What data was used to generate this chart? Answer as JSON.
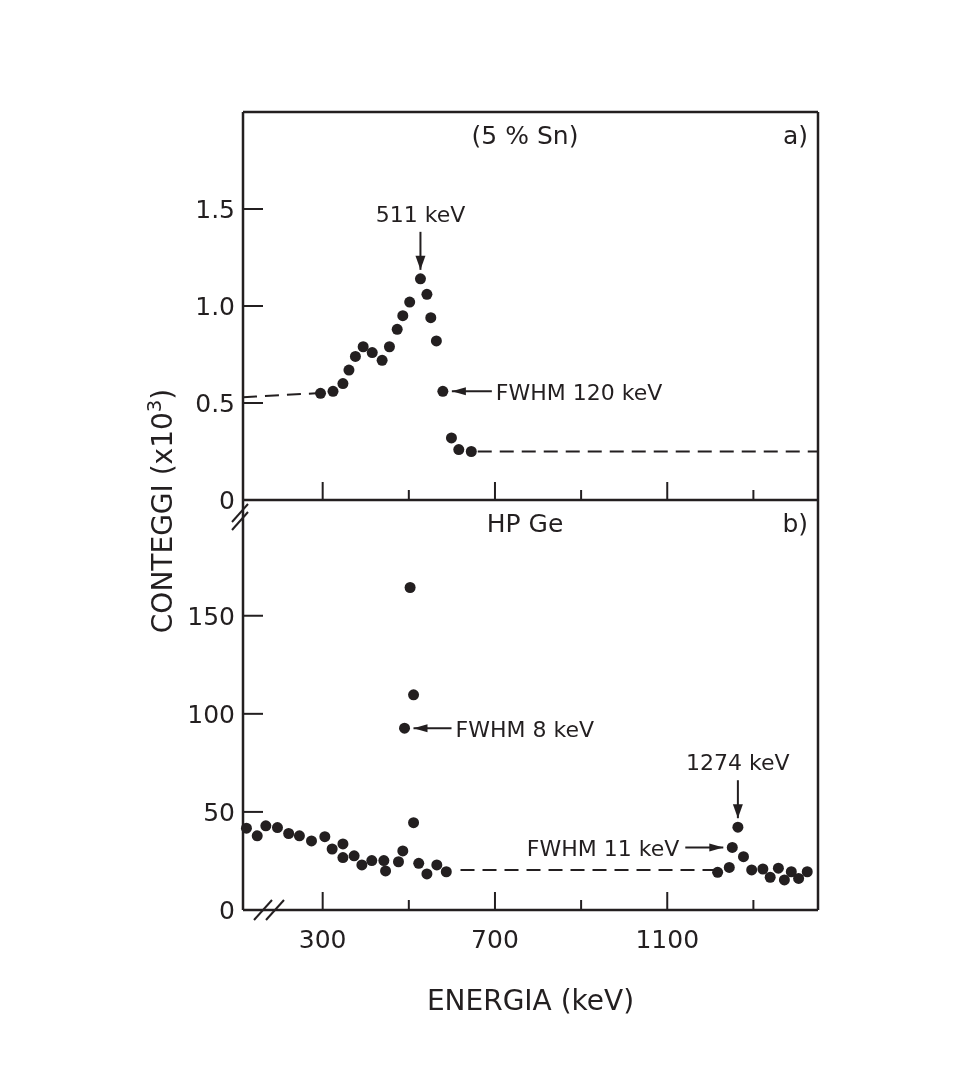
{
  "chart_data": [
    {
      "type": "scatter",
      "title": "(5 % Sn)",
      "ylabel": "CONTEGGI (x10$^{3}$)",
      "xlim": [
        115,
        1450
      ],
      "xticks": [
        300,
        {
          "value": 500,
          "label": null
        },
        700,
        {
          "value": 900,
          "label": null
        },
        1100,
        {
          "value": 1300,
          "label": null
        }
      ],
      "ylim": [
        0,
        2
      ],
      "yticks": [
        0,
        0.5,
        {
          "value": 1,
          "label": "1.0"
        },
        1.5
      ],
      "tick_labels": "y",
      "annotations": [
        "a)",
        {
          "text": "511 keV",
          "x": 527,
          "y": 1.14
        },
        {
          "text": "FWHM 120 keV",
          "x": 579,
          "y": 0.56
        }
      ],
      "series": [
        {
          "marker": "circle",
          "color": "#231f20",
          "x": [
            295,
            324,
            347,
            361,
            376,
            394,
            415,
            438,
            455,
            473,
            486,
            502,
            527,
            542,
            551,
            564,
            579,
            599,
            616,
            645
          ],
          "values": [
            0.55,
            0.56,
            0.6,
            0.67,
            0.74,
            0.79,
            0.76,
            0.72,
            0.79,
            0.88,
            0.95,
            1.02,
            1.14,
            1.06,
            0.94,
            0.82,
            0.56,
            0.32,
            0.26,
            0.25
          ]
        },
        {
          "type": "line",
          "marker": "none",
          "line_style": "dashed",
          "color": "#231f20",
          "x": [
            115,
            285
          ],
          "values": [
            0.53,
            0.55
          ]
        },
        {
          "type": "line",
          "marker": "none",
          "line_style": "dashed",
          "color": "#231f20",
          "x": [
            660,
            1450
          ],
          "values": [
            0.25,
            0.25
          ]
        }
      ]
    },
    {
      "type": "scatter",
      "title": "HP Ge",
      "xlabel": "ENERGIA (keV)",
      "xlim": [
        115,
        1450
      ],
      "xticks": [
        300,
        {
          "value": 500,
          "label": null
        },
        700,
        {
          "value": 900,
          "label": null
        },
        1100,
        {
          "value": 1300,
          "label": null
        }
      ],
      "ylim": [
        0,
        209
      ],
      "yticks": [
        0,
        50,
        100,
        150
      ],
      "annotations": [
        "b)",
        {
          "text": "FWHM 8 keV",
          "x": 490,
          "y": 92.7
        },
        {
          "text": "1274 keV",
          "x": 1264,
          "y": 42.2
        },
        {
          "text": "FWHM 11 keV",
          "x": 1251,
          "y": 31.9
        }
      ],
      "series": [
        {
          "marker": "circle",
          "color": "#231f20",
          "x": [
            123,
            148,
            168,
            195,
            221,
            246,
            274,
            305,
            322,
            347,
            347,
            373,
            391,
            414,
            442,
            446,
            476,
            486,
            490,
            503,
            511,
            511,
            523,
            542,
            565,
            587,
            1217,
            1244,
            1251,
            1264,
            1277,
            1296,
            1322,
            1339,
            1358,
            1372,
            1388,
            1405,
            1425
          ],
          "values": [
            41.7,
            37.8,
            42.9,
            42,
            39,
            37.8,
            35.2,
            37.4,
            31.1,
            33.7,
            26.7,
            27.6,
            23,
            25.2,
            25.2,
            19.9,
            24.6,
            30.1,
            92.7,
            164.4,
            109.7,
            44.5,
            23.8,
            18.4,
            23,
            19.5,
            19.2,
            21.7,
            31.9,
            42.2,
            27.2,
            20.4,
            20.9,
            16.7,
            21.3,
            15.3,
            19.5,
            16.1,
            19.5
          ]
        },
        {
          "type": "line",
          "marker": "none",
          "line_style": "dashed",
          "color": "#231f20",
          "x": [
            620,
            1210
          ],
          "values": [
            20.4,
            20.4
          ]
        }
      ]
    }
  ]
}
